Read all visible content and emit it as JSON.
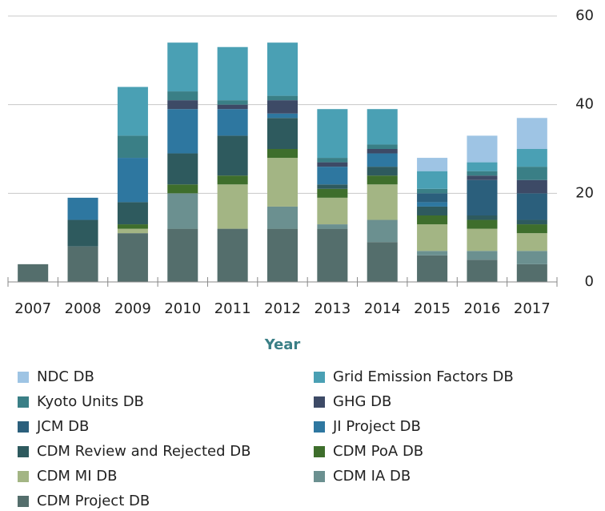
{
  "chart_data": {
    "type": "stacked_bar",
    "x_label": "Year",
    "categories": [
      "2007",
      "2008",
      "2009",
      "2010",
      "2011",
      "2012",
      "2013",
      "2014",
      "2015",
      "2016",
      "2017"
    ],
    "ylim": [
      0,
      60
    ],
    "yticks": [
      0,
      20,
      40,
      60
    ],
    "grid": true,
    "legend": "bottom",
    "series": [
      {
        "name": "CDM Project DB",
        "color": "#546e6c",
        "values": [
          4,
          8,
          11,
          12,
          12,
          12,
          12,
          9,
          6,
          5,
          4
        ]
      },
      {
        "name": "CDM IA DB",
        "color": "#6b9090",
        "values": [
          0,
          0,
          0,
          8,
          0,
          5,
          1,
          5,
          1,
          2,
          3
        ]
      },
      {
        "name": "CDM MI DB",
        "color": "#a3b584",
        "values": [
          0,
          0,
          1,
          0,
          10,
          11,
          6,
          8,
          6,
          5,
          4
        ]
      },
      {
        "name": "CDM PoA DB",
        "color": "#3e6e2c",
        "values": [
          0,
          0,
          1,
          2,
          2,
          2,
          2,
          2,
          2,
          2,
          2
        ]
      },
      {
        "name": "CDM Review and Rejected DB",
        "color": "#2e5a5e",
        "values": [
          0,
          6,
          5,
          7,
          9,
          7,
          1,
          2,
          2,
          1,
          1
        ]
      },
      {
        "name": "JI Project DB",
        "color": "#2e77a0",
        "values": [
          0,
          5,
          10,
          10,
          6,
          1,
          4,
          3,
          1,
          0,
          0
        ]
      },
      {
        "name": "JCM DB",
        "color": "#2b5f7c",
        "values": [
          0,
          0,
          0,
          0,
          0,
          0,
          0,
          0,
          2,
          8,
          6
        ]
      },
      {
        "name": "GHG DB",
        "color": "#3d4a66",
        "values": [
          0,
          0,
          0,
          2,
          1,
          3,
          1,
          1,
          0,
          1,
          3
        ]
      },
      {
        "name": "Kyoto Units DB",
        "color": "#3a7f86",
        "values": [
          0,
          0,
          5,
          2,
          1,
          1,
          1,
          1,
          1,
          1,
          3
        ]
      },
      {
        "name": "Grid Emission Factors DB",
        "color": "#4aa0b4",
        "values": [
          0,
          0,
          11,
          11,
          12,
          12,
          11,
          8,
          4,
          2,
          4
        ]
      },
      {
        "name": "NDC DB",
        "color": "#9ec4e4",
        "values": [
          0,
          0,
          0,
          0,
          0,
          0,
          0,
          0,
          3,
          6,
          7
        ]
      }
    ]
  }
}
